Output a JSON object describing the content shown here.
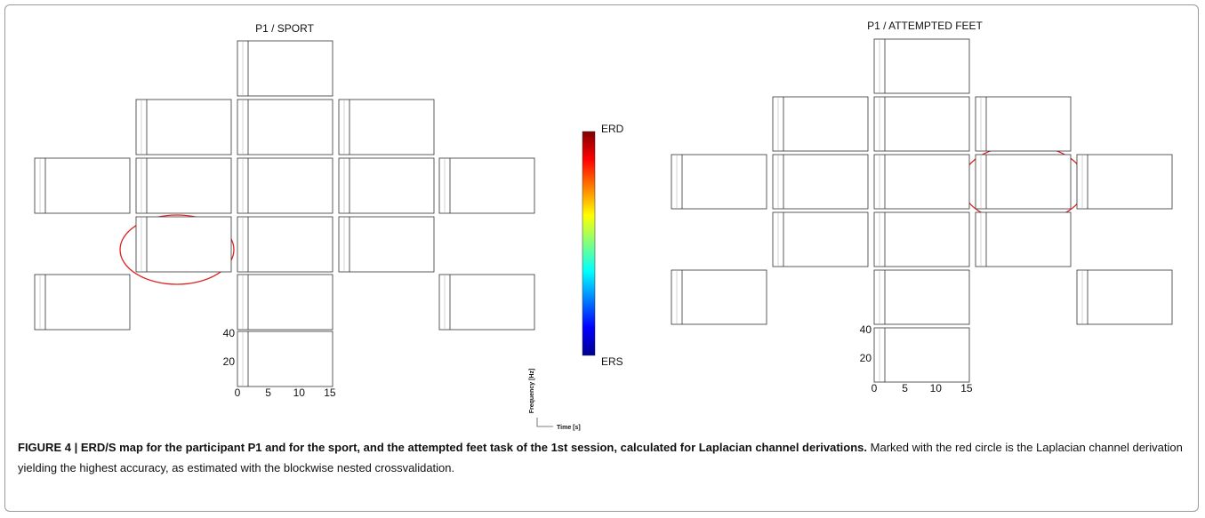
{
  "panels": [
    {
      "title": "P1 / SPORT",
      "y_ticks": [
        "40",
        "20"
      ],
      "x_ticks": [
        "0",
        "5",
        "10",
        "15"
      ]
    },
    {
      "title": "P1 / ATTEMPTED FEET",
      "y_ticks": [
        "40",
        "20"
      ],
      "x_ticks": [
        "0",
        "5",
        "10",
        "15"
      ]
    }
  ],
  "colorbar": {
    "top_label": "ERD",
    "bottom_label": "ERS"
  },
  "axis_legend": {
    "y_label": "Frequency [Hz]",
    "x_label": "Time [s]"
  },
  "caption": {
    "label": "FIGURE 4 | ",
    "bold": "ERD/S map for the participant P1 and for the sport, and the attempted feet task of the 1st session, calculated for Laplacian channel derivations.",
    "text": " Marked with the red circle is the Laplacian channel derivation yielding the highest accuracy, as estimated with the blockwise nested crossvalidation."
  }
}
